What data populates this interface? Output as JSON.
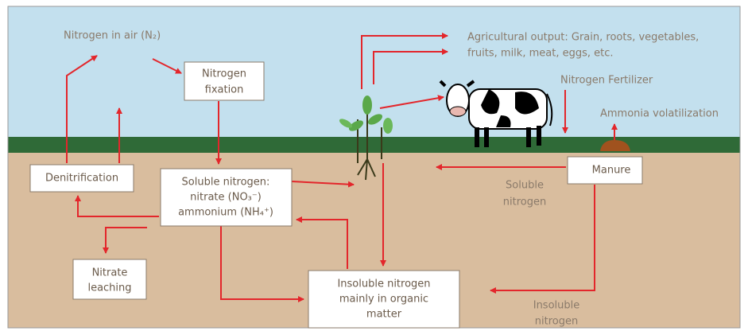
{
  "nodes": [
    {
      "label": [
        "Nitrogen in air (N₂)"
      ]
    },
    {
      "label": [
        "Nitrogen",
        "fixation"
      ]
    },
    {
      "label": [
        "Denitrification"
      ]
    },
    {
      "label": [
        "Soluble nitrogen:",
        "nitrate (NO₃⁻)",
        "ammonium (NH₄⁺)"
      ]
    },
    {
      "label": [
        "Nitrate",
        "leaching"
      ]
    },
    {
      "label": [
        "Insoluble nitrogen",
        "mainly in organic",
        "matter"
      ]
    },
    {
      "label": [
        "Manure"
      ]
    },
    {
      "label": [
        "Agricultural output: Grain, roots, vegetables,",
        "fruits, milk, meat, eggs, etc."
      ]
    },
    {
      "label": [
        "Nitrogen Fertilizer"
      ]
    },
    {
      "label": [
        "Ammonia volatilization"
      ]
    },
    {
      "label": [
        "Soluble",
        "nitrogen"
      ]
    },
    {
      "label": [
        "Insoluble",
        "nitrogen"
      ]
    }
  ]
}
